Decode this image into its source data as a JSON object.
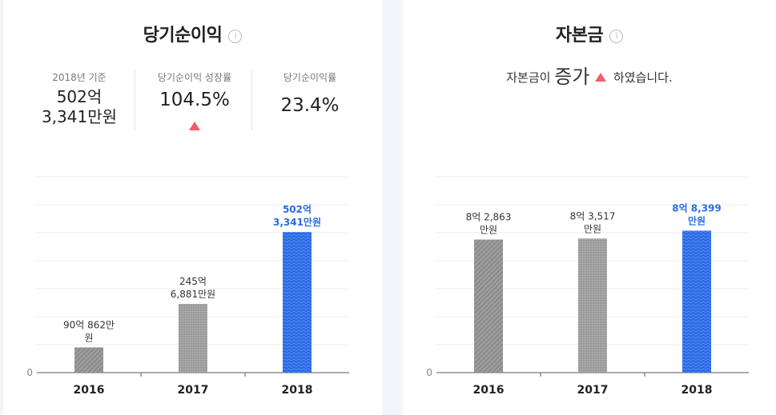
{
  "net_income": {
    "title": "당기순이익",
    "info": "i",
    "kpis": [
      {
        "label": "2018년 기준",
        "value_lines": [
          "502억",
          "3,341만원"
        ]
      },
      {
        "label": "당기순이익 성장률",
        "value": "104.5%",
        "trend": "up"
      },
      {
        "label": "당기순이익률",
        "value": "23.4%"
      }
    ]
  },
  "capital": {
    "title": "자본금",
    "info": "i",
    "message_pre": "자본금이",
    "message_big": "증가",
    "message_post": "하였습니다.",
    "trend": "up"
  },
  "colors": {
    "highlight": "#2a6be6",
    "normal": "#9b9b9b",
    "up": "#f25d6e",
    "grid": "#ececec"
  },
  "chart_data": [
    {
      "type": "bar",
      "title": "당기순이익",
      "categories": [
        "2016",
        "2017",
        "2018"
      ],
      "values": [
        90.0862,
        245.6881,
        502.3341
      ],
      "unit": "억원",
      "data_labels": [
        [
          "90억 862만",
          "원"
        ],
        [
          "245억",
          "6,881만원"
        ],
        [
          "502억",
          "3,341만원"
        ]
      ],
      "highlight_index": 2,
      "zero_label": "0",
      "ylim": [
        0,
        700
      ]
    },
    {
      "type": "bar",
      "title": "자본금",
      "categories": [
        "2016",
        "2017",
        "2018"
      ],
      "values": [
        8.2863,
        8.3517,
        8.8399
      ],
      "unit": "억원",
      "data_labels": [
        [
          "8억 2,863",
          "만원"
        ],
        [
          "8억 3,517",
          "만원"
        ],
        [
          "8억 8,399",
          "만원"
        ]
      ],
      "highlight_index": 2,
      "zero_label": "0",
      "ylim": [
        0,
        12.2
      ]
    }
  ]
}
